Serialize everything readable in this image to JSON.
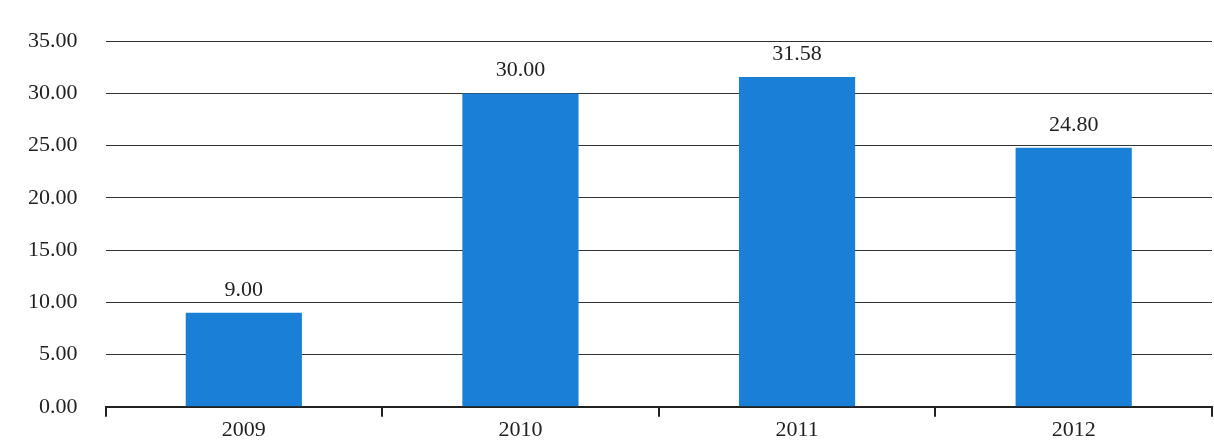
{
  "chart_data": {
    "type": "bar",
    "categories": [
      "2009",
      "2010",
      "2011",
      "2012"
    ],
    "values": [
      9.0,
      30.0,
      31.58,
      24.8
    ],
    "value_labels": [
      "9.00",
      "30.00",
      "31.58",
      "24.80"
    ],
    "color": "#1a7fd6",
    "ylim": [
      0,
      35
    ],
    "yticks": [
      {
        "value": 0,
        "label": "0.00"
      },
      {
        "value": 5,
        "label": "5.00"
      },
      {
        "value": 10,
        "label": "10.00"
      },
      {
        "value": 15,
        "label": "15.00"
      },
      {
        "value": 20,
        "label": "20.00"
      },
      {
        "value": 25,
        "label": "25.00"
      },
      {
        "value": 30,
        "label": "30.00"
      },
      {
        "value": 35,
        "label": "35.00"
      }
    ],
    "grid": "y",
    "legend": false
  }
}
